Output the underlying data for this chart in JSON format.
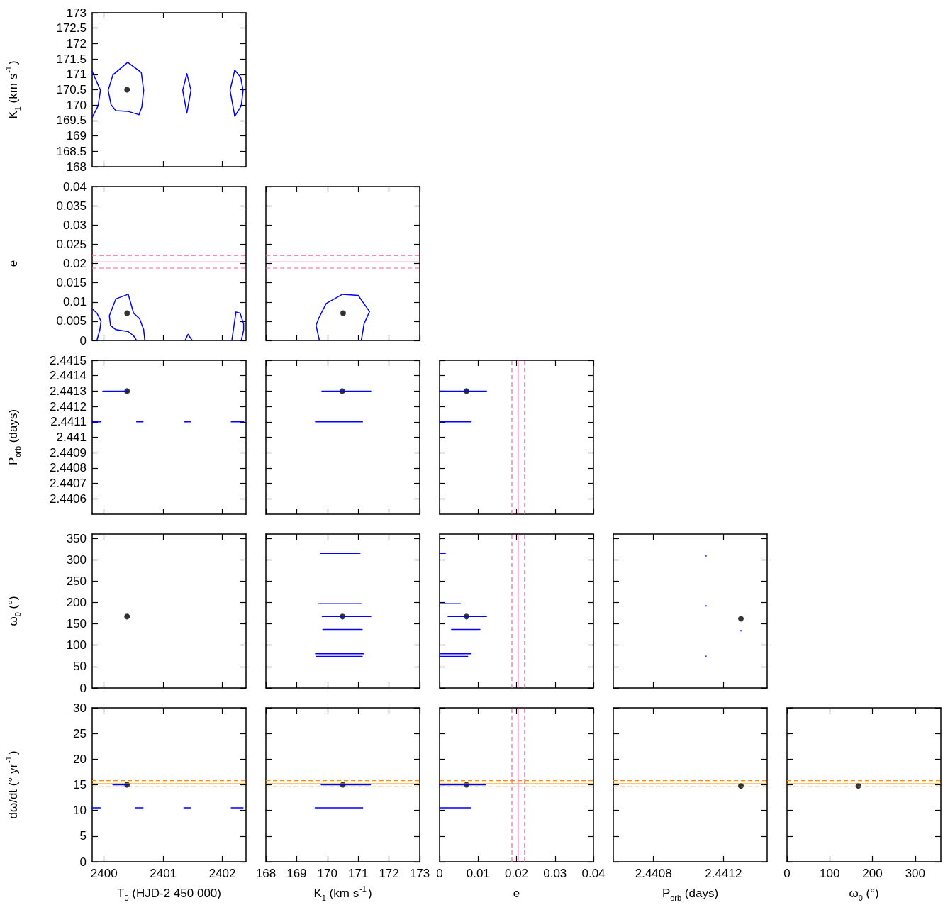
{
  "chart_data": [
    {
      "type": "scatter",
      "xlim": [
        2399.8,
        2402.4
      ],
      "xticks": [
        2400,
        2401,
        2402
      ],
      "ylim": [
        168,
        173
      ],
      "yticks": [
        168,
        168.5,
        169,
        169.5,
        170,
        170.5,
        171,
        171.5,
        172,
        172.5,
        173
      ],
      "ylabel": "K$_{1}$ (km s$^{-1}$)",
      "tick_labels": "y",
      "series": [
        {
          "type": "line",
          "color": "#0000ff",
          "x": [
            2400.4,
            2400.63,
            2400.67,
            2400.64,
            2400.59
          ],
          "values": [
            171.39,
            171.06,
            170.48,
            169.94,
            169.69
          ]
        },
        {
          "type": "line",
          "color": "#0000ff",
          "x": [
            2400.59,
            2400.4,
            2400.2,
            2400.12,
            2400.07,
            2400.15,
            2400.4
          ],
          "values": [
            169.69,
            169.8,
            169.82,
            170.01,
            170.48,
            170.98,
            171.39
          ]
        },
        {
          "type": "line",
          "color": "#0000ff",
          "x": [
            2401.4,
            2401.47,
            2401.4
          ],
          "values": [
            171.02,
            170.48,
            169.74
          ]
        },
        {
          "type": "line",
          "color": "#0000ff",
          "x": [
            2401.4,
            2401.33,
            2401.4
          ],
          "values": [
            169.74,
            170.48,
            171.02
          ]
        },
        {
          "type": "line",
          "color": "#0000ff",
          "x": [
            2402.21,
            2402.31,
            2402.35,
            2402.32,
            2402.21
          ],
          "values": [
            171.14,
            170.9,
            170.48,
            169.98,
            169.64
          ]
        },
        {
          "type": "line",
          "color": "#0000ff",
          "x": [
            2402.21,
            2402.13,
            2402.21
          ],
          "values": [
            169.64,
            170.48,
            171.14
          ]
        },
        {
          "type": "line",
          "color": "#0000ff",
          "x": [
            2399.8,
            2399.94,
            2399.9,
            2399.8
          ],
          "values": [
            171.1,
            170.48,
            169.98,
            169.6
          ]
        },
        {
          "type": "scatter",
          "color": "#000000",
          "marker": "circle",
          "x": [
            2400.39
          ],
          "values": [
            170.5
          ]
        }
      ]
    },
    {
      "type": "scatter",
      "xlim": [
        2399.8,
        2402.4
      ],
      "xticks": [
        2400,
        2401,
        2402
      ],
      "ylim": [
        0,
        0.04
      ],
      "yticks": [
        0,
        0.005,
        0.01,
        0.015,
        0.02,
        0.025,
        0.03,
        0.035,
        0.04
      ],
      "ylabel": "e",
      "tick_labels": "y",
      "ref_lines": [
        {
          "axis": "y",
          "value": 0.0204,
          "color": "#ff5fa0",
          "line_style": "solid"
        },
        {
          "axis": "y",
          "value": 0.0221,
          "color": "#ff5fa0",
          "line_style": "dashed"
        },
        {
          "axis": "y",
          "value": 0.0188,
          "color": "#ff5fa0",
          "line_style": "dashed"
        }
      ],
      "series": [
        {
          "type": "line",
          "color": "#0000ff",
          "x": [
            2400.55,
            2400.5,
            2400.41,
            2400.2,
            2400.11,
            2400.09,
            2400.2,
            2400.41,
            2400.5,
            2400.6,
            2400.67,
            2400.69
          ],
          "values": [
            0,
            0.0012,
            0.0023,
            0.0028,
            0.0039,
            0.0064,
            0.0108,
            0.012,
            0.0071,
            0.0057,
            0.0028,
            0
          ]
        },
        {
          "type": "line",
          "color": "#0000ff",
          "x": [
            2399.8,
            2399.88,
            2399.95,
            2399.93,
            2399.88
          ],
          "values": [
            0.0082,
            0.0071,
            0.005,
            0.0028,
            0
          ]
        },
        {
          "type": "line",
          "color": "#0000ff",
          "x": [
            2401.37,
            2401.42,
            2401.49
          ],
          "values": [
            0,
            0.0016,
            0
          ]
        },
        {
          "type": "line",
          "color": "#0000ff",
          "x": [
            2402.16,
            2402.23,
            2402.3,
            2402.36,
            2402.36,
            2402.32
          ],
          "values": [
            0,
            0.0074,
            0.0071,
            0.0043,
            0.0027,
            0
          ]
        },
        {
          "type": "scatter",
          "color": "#000000",
          "marker": "circle",
          "x": [
            2400.39
          ],
          "values": [
            0.0071
          ]
        }
      ]
    },
    {
      "type": "scatter",
      "xlim": [
        168,
        173
      ],
      "xticks": [
        168,
        169,
        170,
        171,
        172,
        173
      ],
      "ylim": [
        0,
        0.04
      ],
      "yticks": [
        0,
        0.005,
        0.01,
        0.015,
        0.02,
        0.025,
        0.03,
        0.035,
        0.04
      ],
      "tick_labels": false,
      "ref_lines": [
        {
          "axis": "y",
          "value": 0.0204,
          "color": "#ff5fa0",
          "line_style": "solid"
        },
        {
          "axis": "y",
          "value": 0.0221,
          "color": "#ff5fa0",
          "line_style": "dashed"
        },
        {
          "axis": "y",
          "value": 0.0188,
          "color": "#ff5fa0",
          "line_style": "dashed"
        }
      ],
      "series": [
        {
          "type": "line",
          "color": "#0000ff",
          "x": [
            169.74,
            169.63,
            169.72,
            169.96,
            170.49,
            171.0,
            171.37,
            171.19,
            171.15,
            171.1
          ],
          "values": [
            0,
            0.0039,
            0.0058,
            0.0096,
            0.012,
            0.0117,
            0.0075,
            0.0043,
            0.0023,
            0
          ]
        },
        {
          "type": "scatter",
          "color": "#000000",
          "marker": "circle",
          "x": [
            170.51
          ],
          "values": [
            0.0071
          ]
        }
      ]
    },
    {
      "type": "scatter",
      "xlim": [
        2399.8,
        2402.4
      ],
      "xticks": [
        2400,
        2401,
        2402
      ],
      "ylim": [
        2.4405,
        2.4415
      ],
      "yticks": [
        2.4406,
        2.4407,
        2.4408,
        2.4409,
        2.441,
        2.4411,
        2.4412,
        2.4413,
        2.4414,
        2.4415
      ],
      "ylabel": "P$_{orb}$ (days)",
      "tick_labels": "y",
      "series": [
        {
          "type": "line",
          "color": "#0000ff",
          "x": [
            2399.98,
            2400.39
          ],
          "values": [
            2.4413,
            2.4413
          ]
        },
        {
          "type": "line",
          "color": "#0000ff",
          "x": [
            2399.8,
            2399.95
          ],
          "values": [
            2.4411,
            2.4411
          ]
        },
        {
          "type": "line",
          "color": "#0000ff",
          "x": [
            2400.55,
            2400.66
          ],
          "values": [
            2.4411,
            2.4411
          ]
        },
        {
          "type": "line",
          "color": "#0000ff",
          "x": [
            2401.36,
            2401.46
          ],
          "values": [
            2.4411,
            2.4411
          ]
        },
        {
          "type": "line",
          "color": "#0000ff",
          "x": [
            2402.15,
            2402.36
          ],
          "values": [
            2.4411,
            2.4411
          ]
        },
        {
          "type": "scatter",
          "color": "#000000",
          "marker": "circle",
          "x": [
            2400.39
          ],
          "values": [
            2.4413
          ]
        }
      ]
    },
    {
      "type": "scatter",
      "xlim": [
        168,
        173
      ],
      "xticks": [
        168,
        169,
        170,
        171,
        172,
        173
      ],
      "ylim": [
        2.4405,
        2.4415
      ],
      "yticks": [
        2.4406,
        2.4407,
        2.4408,
        2.4409,
        2.441,
        2.4411,
        2.4412,
        2.4413,
        2.4414,
        2.4415
      ],
      "tick_labels": false,
      "series": [
        {
          "type": "line",
          "color": "#0000ff",
          "x": [
            169.82,
            171.41
          ],
          "values": [
            2.4413,
            2.4413
          ]
        },
        {
          "type": "line",
          "color": "#0000ff",
          "x": [
            169.61,
            171.14
          ],
          "values": [
            2.4411,
            2.4411
          ]
        },
        {
          "type": "scatter",
          "color": "#000000",
          "marker": "circle",
          "x": [
            170.48
          ],
          "values": [
            2.4413
          ]
        }
      ]
    },
    {
      "type": "scatter",
      "xlim": [
        0,
        0.04
      ],
      "xticks": [
        0,
        0.01,
        0.02,
        0.03,
        0.04
      ],
      "ylim": [
        2.4405,
        2.4415
      ],
      "yticks": [
        2.4406,
        2.4407,
        2.4408,
        2.4409,
        2.441,
        2.4411,
        2.4412,
        2.4413,
        2.4414,
        2.4415
      ],
      "tick_labels": false,
      "ref_lines": [
        {
          "axis": "x",
          "value": 0.0204,
          "color": "#ff5fa0",
          "line_style": "solid"
        },
        {
          "axis": "x",
          "value": 0.0221,
          "color": "#ff5fa0",
          "line_style": "dashed"
        },
        {
          "axis": "x",
          "value": 0.0188,
          "color": "#ff5fa0",
          "line_style": "dashed"
        }
      ],
      "series": [
        {
          "type": "line",
          "color": "#0000ff",
          "x": [
            0,
            0.0122
          ],
          "values": [
            2.4413,
            2.4413
          ]
        },
        {
          "type": "line",
          "color": "#0000ff",
          "x": [
            0,
            0.0082
          ],
          "values": [
            2.4411,
            2.4411
          ]
        },
        {
          "type": "scatter",
          "color": "#000000",
          "marker": "circle",
          "x": [
            0.007
          ],
          "values": [
            2.4413
          ]
        }
      ]
    },
    {
      "type": "scatter",
      "xlim": [
        2399.8,
        2402.4
      ],
      "xticks": [
        2400,
        2401,
        2402
      ],
      "ylim": [
        0,
        360
      ],
      "yticks": [
        0,
        50,
        100,
        150,
        200,
        250,
        300,
        350
      ],
      "ylabel": "ω$_{0}$ (°)",
      "tick_labels": "y",
      "series": [
        {
          "type": "scatter",
          "color": "#000000",
          "marker": "circle",
          "x": [
            2400.39
          ],
          "values": [
            167
          ]
        }
      ]
    },
    {
      "type": "scatter",
      "xlim": [
        168,
        173
      ],
      "xticks": [
        168,
        169,
        170,
        171,
        172,
        173
      ],
      "ylim": [
        0,
        360
      ],
      "yticks": [
        0,
        50,
        100,
        150,
        200,
        250,
        300,
        350
      ],
      "tick_labels": false,
      "series": [
        {
          "type": "line",
          "color": "#0000ff",
          "x": [
            169.78,
            171.06
          ],
          "values": [
            315,
            315
          ]
        },
        {
          "type": "line",
          "color": "#0000ff",
          "x": [
            169.72,
            171.09
          ],
          "values": [
            197,
            197
          ]
        },
        {
          "type": "line",
          "color": "#0000ff",
          "x": [
            169.83,
            171.41
          ],
          "values": [
            167,
            167
          ]
        },
        {
          "type": "line",
          "color": "#0000ff",
          "x": [
            169.85,
            171.13
          ],
          "values": [
            137,
            137
          ]
        },
        {
          "type": "line",
          "color": "#0000ff",
          "x": [
            169.61,
            171.17
          ],
          "values": [
            80,
            80
          ]
        },
        {
          "type": "line",
          "color": "#0000ff",
          "x": [
            169.64,
            171.13
          ],
          "values": [
            74,
            74
          ]
        },
        {
          "type": "scatter",
          "color": "#000000",
          "marker": "circle",
          "x": [
            170.49
          ],
          "values": [
            167
          ]
        }
      ]
    },
    {
      "type": "scatter",
      "xlim": [
        0,
        0.04
      ],
      "xticks": [
        0,
        0.01,
        0.02,
        0.03,
        0.04
      ],
      "ylim": [
        0,
        360
      ],
      "yticks": [
        0,
        50,
        100,
        150,
        200,
        250,
        300,
        350
      ],
      "tick_labels": false,
      "ref_lines": [
        {
          "axis": "x",
          "value": 0.0204,
          "color": "#ff5fa0",
          "line_style": "solid"
        },
        {
          "axis": "x",
          "value": 0.0221,
          "color": "#ff5fa0",
          "line_style": "dashed"
        },
        {
          "axis": "x",
          "value": 0.0188,
          "color": "#ff5fa0",
          "line_style": "dashed"
        }
      ],
      "series": [
        {
          "type": "line",
          "color": "#0000ff",
          "x": [
            0,
            0.0015
          ],
          "values": [
            315,
            315
          ]
        },
        {
          "type": "line",
          "color": "#0000ff",
          "x": [
            0,
            0.0054
          ],
          "values": [
            197,
            197
          ]
        },
        {
          "type": "line",
          "color": "#0000ff",
          "x": [
            0.0022,
            0.0122
          ],
          "values": [
            167,
            167
          ]
        },
        {
          "type": "line",
          "color": "#0000ff",
          "x": [
            0.0031,
            0.0105
          ],
          "values": [
            137,
            137
          ]
        },
        {
          "type": "line",
          "color": "#0000ff",
          "x": [
            0,
            0.0082
          ],
          "values": [
            80,
            80
          ]
        },
        {
          "type": "line",
          "color": "#0000ff",
          "x": [
            0,
            0.0073
          ],
          "values": [
            74,
            74
          ]
        },
        {
          "type": "scatter",
          "color": "#000000",
          "marker": "circle",
          "x": [
            0.007
          ],
          "values": [
            167
          ]
        }
      ]
    },
    {
      "type": "scatter",
      "xlim": [
        2.44057,
        2.44145
      ],
      "xticks": [
        2.4408,
        2.4412
      ],
      "ylim": [
        0,
        360
      ],
      "yticks": [
        0,
        50,
        100,
        150,
        200,
        250,
        300,
        350
      ],
      "tick_labels": false,
      "series": [
        {
          "type": "scatter",
          "color": "#0000ff",
          "marker": "square",
          "x": [
            2.4411,
            2.4411,
            2.4413,
            2.4411
          ],
          "values": [
            309,
            192,
            134,
            74
          ]
        },
        {
          "type": "scatter",
          "color": "#000000",
          "marker": "circle",
          "x": [
            2.4413
          ],
          "values": [
            162
          ]
        }
      ]
    },
    {
      "type": "scatter",
      "xlim": [
        2399.8,
        2402.4
      ],
      "xticks": [
        2400,
        2401,
        2402
      ],
      "ylim": [
        0,
        30
      ],
      "yticks": [
        0,
        5,
        10,
        15,
        20,
        25,
        30
      ],
      "xlabel": "T$_{0}$ (HJD-2 450 000)",
      "ylabel": "dω/dt (° yr$^{-1}$)",
      "ref_lines": [
        {
          "axis": "y",
          "value": 15.2,
          "color": "#ff8c00",
          "line_style": "solid"
        },
        {
          "axis": "y",
          "value": 15.8,
          "color": "#ff8c00",
          "line_style": "dashed"
        },
        {
          "axis": "y",
          "value": 14.6,
          "color": "#ff8c00",
          "line_style": "dashed"
        }
      ],
      "series": [
        {
          "type": "line",
          "color": "#0000ff",
          "x": [
            2400.15,
            2400.4
          ],
          "values": [
            15,
            15
          ]
        },
        {
          "type": "line",
          "color": "#0000ff",
          "x": [
            2399.8,
            2399.94
          ],
          "values": [
            10.5,
            10.5
          ]
        },
        {
          "type": "line",
          "color": "#0000ff",
          "x": [
            2400.53,
            2400.66
          ],
          "values": [
            10.5,
            10.5
          ]
        },
        {
          "type": "line",
          "color": "#0000ff",
          "x": [
            2401.35,
            2401.46
          ],
          "values": [
            10.5,
            10.5
          ]
        },
        {
          "type": "line",
          "color": "#0000ff",
          "x": [
            2402.15,
            2402.35
          ],
          "values": [
            10.5,
            10.5
          ]
        },
        {
          "type": "scatter",
          "color": "#000000",
          "marker": "circle",
          "x": [
            2400.39
          ],
          "values": [
            15
          ]
        }
      ]
    },
    {
      "type": "scatter",
      "xlim": [
        168,
        173
      ],
      "xticks": [
        168,
        169,
        170,
        171,
        172,
        173
      ],
      "ylim": [
        0,
        30
      ],
      "yticks": [
        0,
        5,
        10,
        15,
        20,
        25,
        30
      ],
      "xlabel": "K$_{1}$ (km s$^{-1}$)",
      "tick_labels": "x",
      "ref_lines": [
        {
          "axis": "y",
          "value": 15.2,
          "color": "#ff8c00",
          "line_style": "solid"
        },
        {
          "axis": "y",
          "value": 15.8,
          "color": "#ff8c00",
          "line_style": "dashed"
        },
        {
          "axis": "y",
          "value": 14.6,
          "color": "#ff8c00",
          "line_style": "dashed"
        }
      ],
      "series": [
        {
          "type": "line",
          "color": "#0000ff",
          "x": [
            169.8,
            171.4
          ],
          "values": [
            15,
            15
          ]
        },
        {
          "type": "line",
          "color": "#0000ff",
          "x": [
            169.6,
            171.15
          ],
          "values": [
            10.5,
            10.5
          ]
        },
        {
          "type": "scatter",
          "color": "#000000",
          "marker": "circle",
          "x": [
            170.5
          ],
          "values": [
            15
          ]
        }
      ]
    },
    {
      "type": "scatter",
      "xlim": [
        0,
        0.04
      ],
      "xticks": [
        0,
        0.01,
        0.02,
        0.03,
        0.04
      ],
      "ylim": [
        0,
        30
      ],
      "yticks": [
        0,
        5,
        10,
        15,
        20,
        25,
        30
      ],
      "xlabel": "e",
      "tick_labels": "x",
      "ref_lines": [
        {
          "axis": "x",
          "value": 0.0204,
          "color": "#ff5fa0",
          "line_style": "solid"
        },
        {
          "axis": "x",
          "value": 0.0221,
          "color": "#ff5fa0",
          "line_style": "dashed"
        },
        {
          "axis": "x",
          "value": 0.0188,
          "color": "#ff5fa0",
          "line_style": "dashed"
        },
        {
          "axis": "y",
          "value": 15.2,
          "color": "#ff8c00",
          "line_style": "solid"
        },
        {
          "axis": "y",
          "value": 15.8,
          "color": "#ff8c00",
          "line_style": "dashed"
        },
        {
          "axis": "y",
          "value": 14.6,
          "color": "#ff8c00",
          "line_style": "dashed"
        }
      ],
      "series": [
        {
          "type": "line",
          "color": "#0000ff",
          "x": [
            0,
            0.012
          ],
          "values": [
            15,
            15
          ]
        },
        {
          "type": "line",
          "color": "#0000ff",
          "x": [
            0,
            0.0081
          ],
          "values": [
            10.5,
            10.5
          ]
        },
        {
          "type": "scatter",
          "color": "#000000",
          "marker": "circle",
          "x": [
            0.007
          ],
          "values": [
            15
          ]
        }
      ]
    },
    {
      "type": "scatter",
      "xlim": [
        2.44057,
        2.44145
      ],
      "xticks": [
        2.4408,
        2.4412
      ],
      "ylim": [
        0,
        30
      ],
      "yticks": [
        0,
        5,
        10,
        15,
        20,
        25,
        30
      ],
      "xlabel": "P$_{orb}$ (days)",
      "tick_labels": "x",
      "ref_lines": [
        {
          "axis": "y",
          "value": 15.2,
          "color": "#ff8c00",
          "line_style": "solid"
        },
        {
          "axis": "y",
          "value": 15.8,
          "color": "#ff8c00",
          "line_style": "dashed"
        },
        {
          "axis": "y",
          "value": 14.6,
          "color": "#ff8c00",
          "line_style": "dashed"
        }
      ],
      "series": [
        {
          "type": "scatter",
          "color": "#000000",
          "marker": "circle",
          "x": [
            2.4413
          ],
          "values": [
            14.8
          ]
        }
      ]
    },
    {
      "type": "scatter",
      "xlim": [
        0,
        360
      ],
      "xticks": [
        0,
        100,
        200,
        300
      ],
      "ylim": [
        0,
        30
      ],
      "yticks": [
        0,
        5,
        10,
        15,
        20,
        25,
        30
      ],
      "xlabel": "ω$_{0}$ (°)",
      "tick_labels": "x",
      "ref_lines": [
        {
          "axis": "y",
          "value": 15.2,
          "color": "#ff8c00",
          "line_style": "solid"
        },
        {
          "axis": "y",
          "value": 15.8,
          "color": "#ff8c00",
          "line_style": "dashed"
        },
        {
          "axis": "y",
          "value": 14.6,
          "color": "#ff8c00",
          "line_style": "dashed"
        }
      ],
      "series": [
        {
          "type": "scatter",
          "color": "#000000",
          "marker": "circle",
          "x": [
            167
          ],
          "values": [
            14.8
          ]
        }
      ]
    }
  ]
}
